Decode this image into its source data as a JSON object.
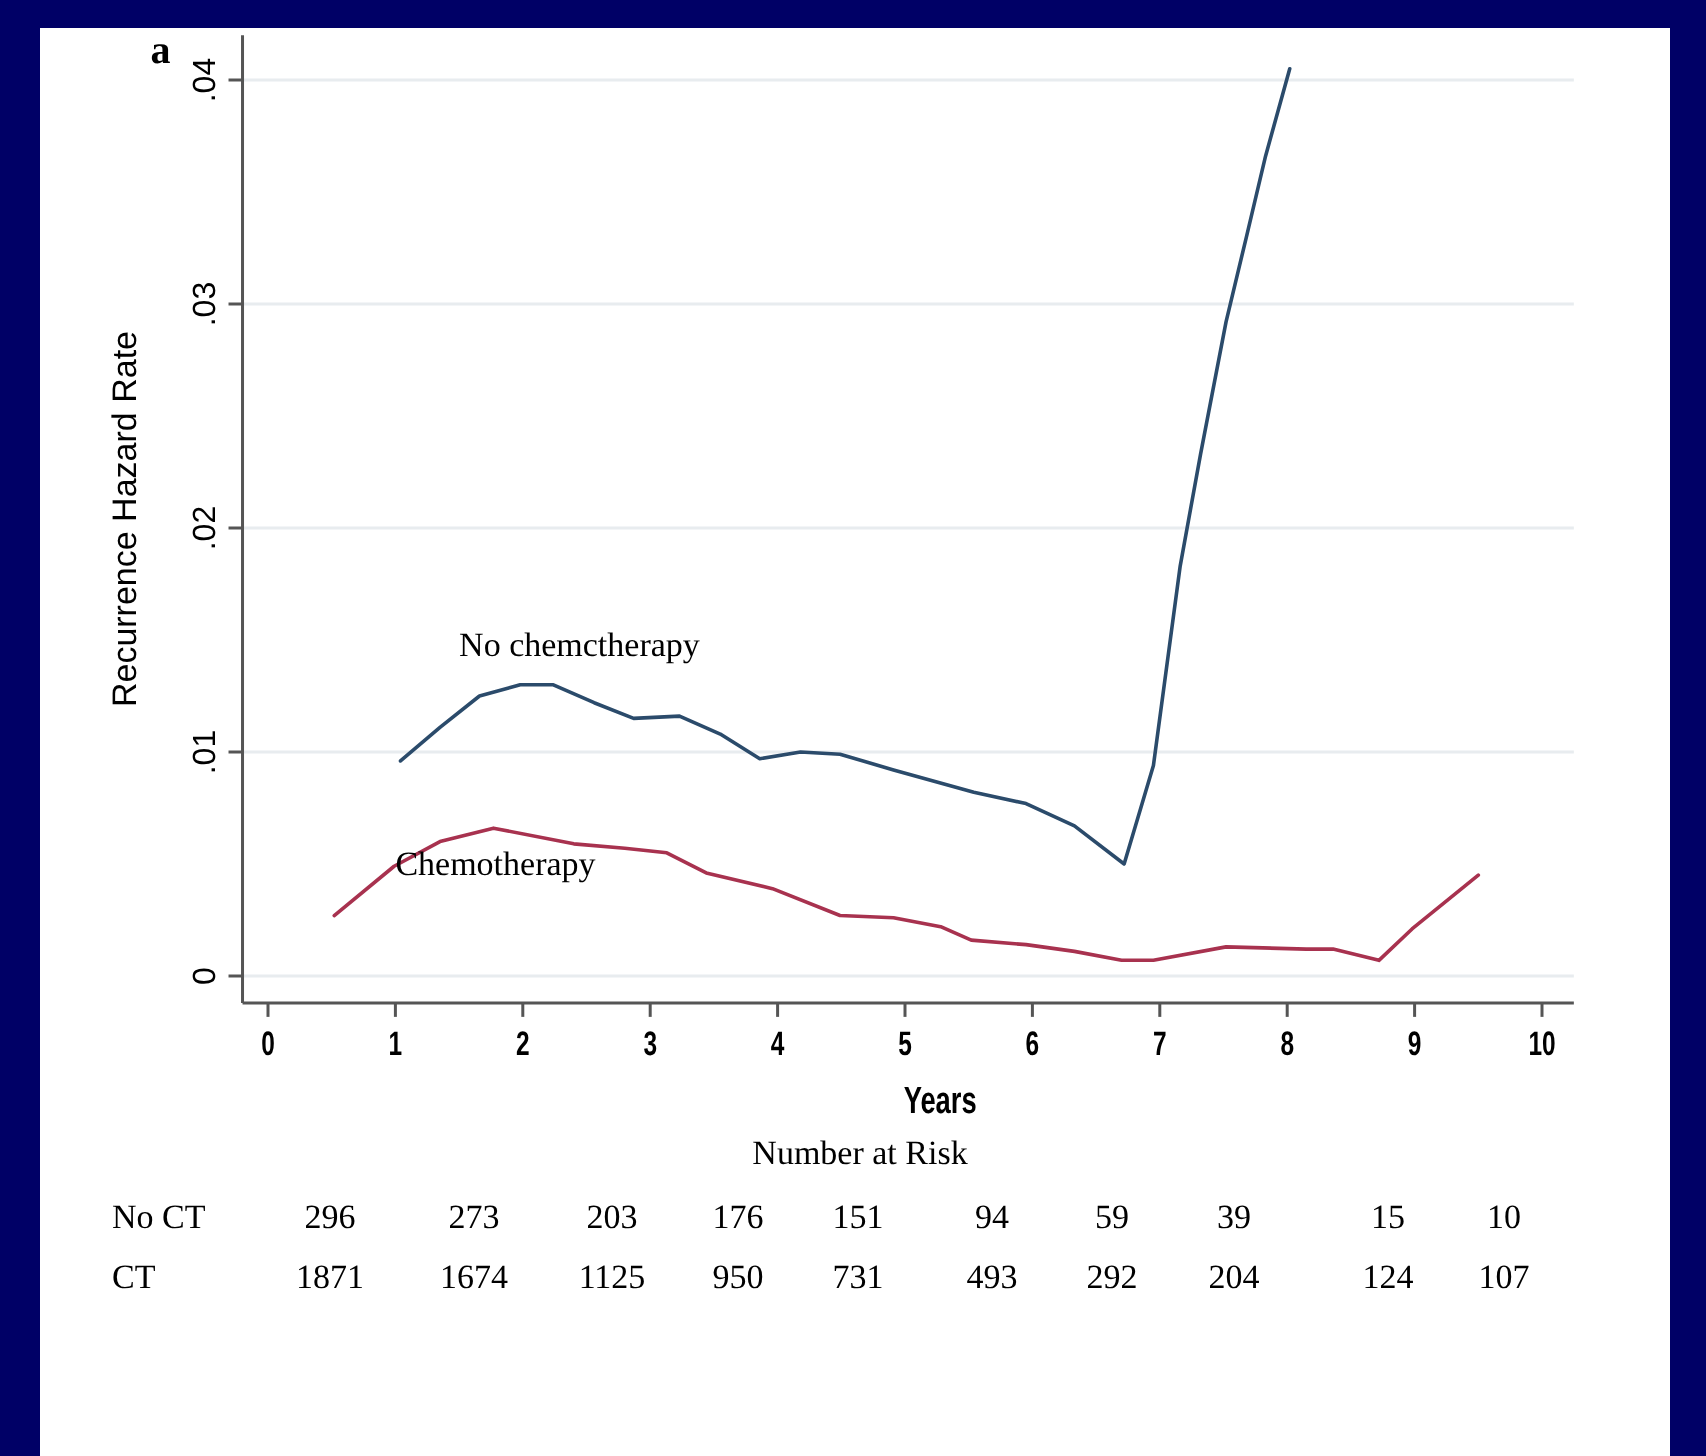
{
  "chart_data": {
    "type": "line",
    "ylabel": "Recurrence Hazard Rate",
    "xlabel": "Years",
    "xlim": [
      -0.2,
      10.25
    ],
    "ylim": [
      -0.0012,
      0.042
    ],
    "xticks": [
      0,
      1,
      2,
      3,
      4,
      5,
      6,
      7,
      8,
      9,
      10
    ],
    "yticks": [
      {
        "value": 0,
        "label": "0"
      },
      {
        "value": 0.01,
        "label": ".01"
      },
      {
        "value": 0.02,
        "label": ".02"
      },
      {
        "value": 0.03,
        "label": ".03"
      },
      {
        "value": 0.04,
        "label": ".04"
      }
    ],
    "grid": "y",
    "marker": "none",
    "line_style": "solid",
    "series": [
      {
        "name": "No chemctherapy",
        "color": "#2b4b6b",
        "x": [
          1.04,
          1.35,
          1.66,
          1.98,
          2.24,
          2.56,
          2.87,
          3.23,
          3.55,
          3.86,
          4.18,
          4.49,
          4.91,
          5.54,
          5.95,
          6.33,
          6.72,
          6.95,
          7.16,
          7.32,
          7.52,
          7.68,
          7.83,
          8.02
        ],
        "values": [
          0.0096,
          0.0111,
          0.0125,
          0.013,
          0.013,
          0.0122,
          0.0115,
          0.0116,
          0.0108,
          0.0097,
          0.01,
          0.0099,
          0.0092,
          0.0082,
          0.0077,
          0.0067,
          0.005,
          0.0094,
          0.0183,
          0.0233,
          0.0292,
          0.033,
          0.0366,
          0.0405
        ]
      },
      {
        "name": "Chemotherapy",
        "color": "#a8324f",
        "x": [
          0.52,
          0.99,
          1.35,
          1.77,
          2.4,
          2.8,
          3.13,
          3.44,
          3.96,
          4.49,
          4.91,
          5.28,
          5.52,
          5.95,
          6.33,
          6.7,
          6.95,
          7.52,
          8.15,
          8.36,
          8.72,
          8.98,
          9.5
        ],
        "values": [
          0.0027,
          0.0049,
          0.006,
          0.0066,
          0.0059,
          0.0057,
          0.0055,
          0.0046,
          0.0039,
          0.0027,
          0.0026,
          0.0022,
          0.0016,
          0.0014,
          0.0011,
          0.0007,
          0.0007,
          0.0013,
          0.0012,
          0.0012,
          0.0007,
          0.0021,
          0.0045
        ]
      }
    ],
    "annotations": [
      "a",
      "Number at Risk",
      "No CT",
      "296",
      "273",
      "203",
      "176",
      "151",
      "94",
      "59",
      "39",
      "15",
      "10",
      "CT",
      "1871",
      "1674",
      "1125",
      "950",
      "731",
      "493",
      "292",
      "204",
      "124",
      "107"
    ]
  }
}
